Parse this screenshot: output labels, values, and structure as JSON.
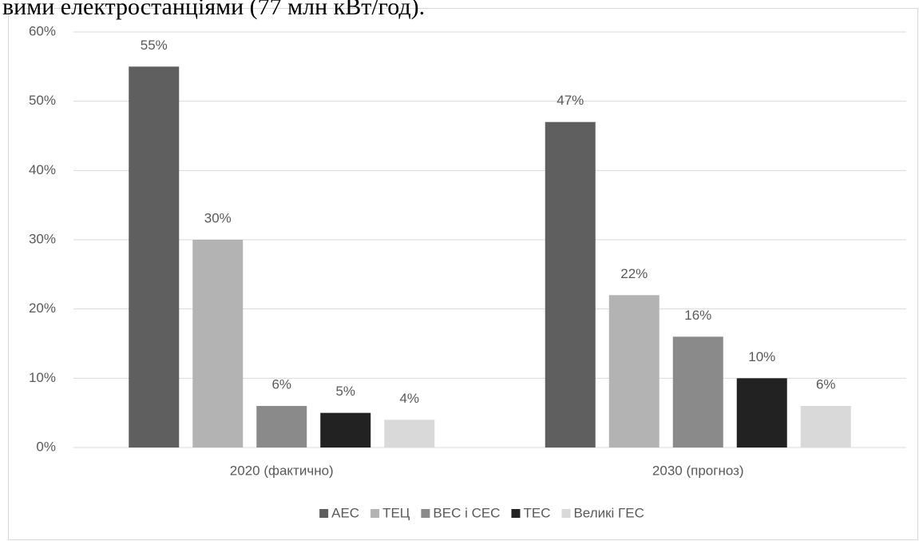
{
  "page_text": "вими електростанціями (77 млн кВт/год).",
  "chart_data": {
    "type": "bar",
    "categories": [
      "2020 (фактично)",
      "2030 (прогноз)"
    ],
    "series": [
      {
        "name": "АЕС",
        "color": "#5f5f5f",
        "values": [
          55,
          47
        ],
        "value_labels": [
          "55%",
          "47%"
        ]
      },
      {
        "name": "ТЕЦ",
        "color": "#b3b3b3",
        "values": [
          30,
          22
        ],
        "value_labels": [
          "30%",
          "22%"
        ]
      },
      {
        "name": "ВЕС і СЕС",
        "color": "#8a8a8a",
        "values": [
          6,
          16
        ],
        "value_labels": [
          "6%",
          "16%"
        ]
      },
      {
        "name": "ТЕС",
        "color": "#222222",
        "values": [
          5,
          10
        ],
        "value_labels": [
          "5%",
          "10%"
        ]
      },
      {
        "name": "Великі ГЕС",
        "color": "#d9d9d9",
        "values": [
          4,
          6
        ],
        "value_labels": [
          "4%",
          "6%"
        ]
      }
    ],
    "ylim": [
      0,
      60
    ],
    "yticks": [
      {
        "value": 0,
        "label": "0%"
      },
      {
        "value": 10,
        "label": "10%"
      },
      {
        "value": 20,
        "label": "20%"
      },
      {
        "value": 30,
        "label": "30%"
      },
      {
        "value": 40,
        "label": "40%"
      },
      {
        "value": 50,
        "label": "50%"
      },
      {
        "value": 60,
        "label": "60%"
      }
    ],
    "grid": true,
    "legend": "bottom"
  }
}
